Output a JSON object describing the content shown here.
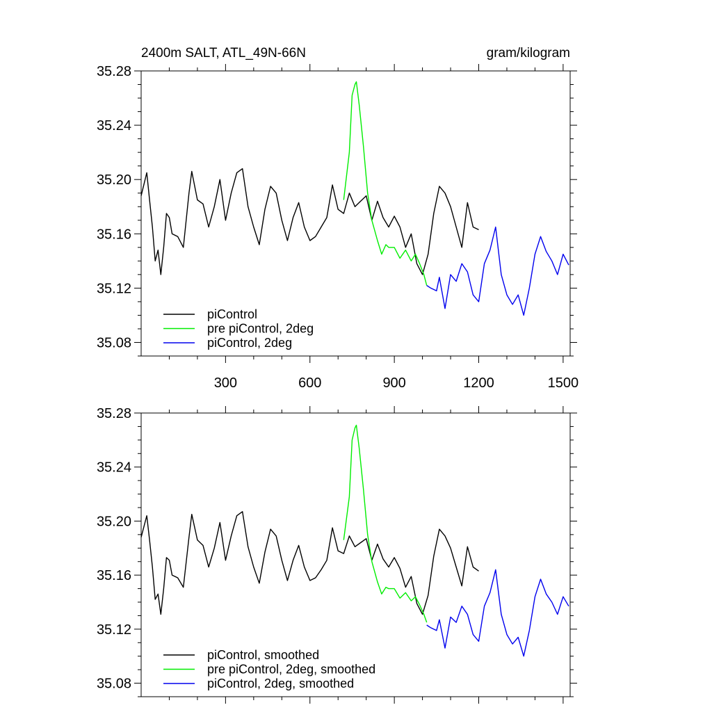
{
  "header": {
    "title_left": "2400m SALT, ATL_49N-66N",
    "title_right": "gram/kilogram"
  },
  "colors": {
    "black": "#000000",
    "green": "#00ee00",
    "blue": "#0000ee"
  },
  "chart_data": [
    {
      "type": "line",
      "title": "2400m SALT, ATL_49N-66N",
      "units": "gram/kilogram",
      "xlim": [
        0,
        1525
      ],
      "ylim": [
        35.07,
        35.28
      ],
      "x_ticks": [
        300,
        600,
        900,
        1200,
        1500
      ],
      "x_tick_labels": [
        "300",
        "600",
        "900",
        "1200",
        "1500"
      ],
      "y_ticks": [
        35.08,
        35.12,
        35.16,
        35.2,
        35.24,
        35.28
      ],
      "y_tick_labels": [
        "35.08",
        "35.12",
        "35.16",
        "35.20",
        "35.24",
        "35.28"
      ],
      "legend_position": "bottom-left",
      "series": [
        {
          "name": "piControl",
          "color": "#000000",
          "x": [
            0,
            20,
            30,
            40,
            50,
            60,
            70,
            80,
            90,
            100,
            110,
            130,
            150,
            170,
            180,
            200,
            220,
            240,
            260,
            280,
            300,
            320,
            340,
            360,
            380,
            400,
            420,
            440,
            460,
            480,
            500,
            520,
            540,
            560,
            580,
            600,
            620,
            640,
            660,
            680,
            700,
            720,
            740,
            760,
            780,
            800,
            820,
            840,
            860,
            880,
            900,
            920,
            940,
            960,
            980,
            1000,
            1020,
            1040,
            1060,
            1080,
            1100,
            1120,
            1140,
            1160,
            1180,
            1200
          ],
          "values": [
            35.188,
            35.205,
            35.185,
            35.165,
            35.14,
            35.148,
            35.13,
            35.15,
            35.175,
            35.172,
            35.16,
            35.158,
            35.15,
            35.19,
            35.206,
            35.185,
            35.182,
            35.165,
            35.18,
            35.2,
            35.17,
            35.19,
            35.205,
            35.208,
            35.18,
            35.165,
            35.152,
            35.178,
            35.195,
            35.19,
            35.17,
            35.155,
            35.172,
            35.183,
            35.165,
            35.155,
            35.158,
            35.165,
            35.172,
            35.196,
            35.178,
            35.175,
            35.19,
            35.18,
            35.184,
            35.188,
            35.17,
            35.184,
            35.172,
            35.165,
            35.173,
            35.165,
            35.15,
            35.16,
            35.138,
            35.13,
            35.145,
            35.175,
            35.195,
            35.19,
            35.18,
            35.165,
            35.15,
            35.183,
            35.165,
            35.163
          ]
        },
        {
          "name": "pre piControl, 2deg",
          "color": "#00ee00",
          "x": [
            720,
            740,
            750,
            760,
            765,
            775,
            790,
            805,
            820,
            840,
            855,
            870,
            880,
            900,
            920,
            940,
            960,
            975,
            990,
            1005,
            1015
          ],
          "values": [
            35.185,
            35.22,
            35.262,
            35.27,
            35.272,
            35.255,
            35.225,
            35.19,
            35.17,
            35.155,
            35.145,
            35.152,
            35.15,
            35.15,
            35.142,
            35.148,
            35.14,
            35.145,
            35.138,
            35.13,
            35.122
          ]
        },
        {
          "name": "piControl, 2deg",
          "color": "#0000ee",
          "x": [
            1015,
            1030,
            1050,
            1060,
            1080,
            1100,
            1120,
            1140,
            1160,
            1180,
            1200,
            1220,
            1240,
            1260,
            1280,
            1300,
            1320,
            1340,
            1360,
            1380,
            1400,
            1420,
            1440,
            1460,
            1480,
            1500,
            1520
          ],
          "values": [
            35.122,
            35.12,
            35.118,
            35.128,
            35.105,
            35.13,
            35.125,
            35.138,
            35.132,
            35.115,
            35.11,
            35.138,
            35.148,
            35.165,
            35.13,
            35.115,
            35.108,
            35.115,
            35.1,
            35.12,
            35.145,
            35.158,
            35.147,
            35.14,
            35.13,
            35.145,
            35.137
          ]
        }
      ]
    },
    {
      "type": "line",
      "title": "",
      "units": "",
      "xlim": [
        0,
        1525
      ],
      "ylim": [
        35.07,
        35.28
      ],
      "x_ticks": [
        300,
        600,
        900,
        1200,
        1500
      ],
      "x_tick_labels": [
        "",
        "",
        "",
        "",
        ""
      ],
      "y_ticks": [
        35.08,
        35.12,
        35.16,
        35.2,
        35.24,
        35.28
      ],
      "y_tick_labels": [
        "35.08",
        "35.12",
        "35.16",
        "35.20",
        "35.24",
        "35.28"
      ],
      "legend_position": "bottom-left",
      "series": [
        {
          "name": "piControl, smoothed",
          "color": "#000000",
          "x": [
            0,
            20,
            30,
            40,
            50,
            60,
            70,
            80,
            90,
            100,
            110,
            130,
            150,
            170,
            180,
            200,
            220,
            240,
            260,
            280,
            300,
            320,
            340,
            360,
            380,
            400,
            420,
            440,
            460,
            480,
            500,
            520,
            540,
            560,
            580,
            600,
            620,
            640,
            660,
            680,
            700,
            720,
            740,
            760,
            780,
            800,
            820,
            840,
            860,
            880,
            900,
            920,
            940,
            960,
            980,
            1000,
            1020,
            1040,
            1060,
            1080,
            1100,
            1120,
            1140,
            1160,
            1180,
            1200
          ],
          "values": [
            35.188,
            35.204,
            35.186,
            35.166,
            35.142,
            35.146,
            35.131,
            35.15,
            35.173,
            35.171,
            35.16,
            35.158,
            35.151,
            35.188,
            35.205,
            35.186,
            35.182,
            35.166,
            35.18,
            35.199,
            35.171,
            35.189,
            35.204,
            35.207,
            35.181,
            35.166,
            35.154,
            35.177,
            35.194,
            35.189,
            35.171,
            35.156,
            35.171,
            35.182,
            35.166,
            35.156,
            35.158,
            35.164,
            35.171,
            35.195,
            35.178,
            35.176,
            35.189,
            35.181,
            35.184,
            35.187,
            35.171,
            35.183,
            35.172,
            35.166,
            35.173,
            35.165,
            35.151,
            35.159,
            35.139,
            35.131,
            35.145,
            35.174,
            35.194,
            35.189,
            35.18,
            35.166,
            35.152,
            35.181,
            35.166,
            35.163
          ]
        },
        {
          "name": "pre piControl, 2deg, smoothed",
          "color": "#00ee00",
          "x": [
            720,
            740,
            750,
            760,
            765,
            775,
            790,
            805,
            820,
            840,
            855,
            870,
            880,
            900,
            920,
            940,
            960,
            975,
            990,
            1005,
            1015
          ],
          "values": [
            35.186,
            35.218,
            35.26,
            35.269,
            35.271,
            35.254,
            35.224,
            35.19,
            35.17,
            35.155,
            35.146,
            35.151,
            35.15,
            35.15,
            35.143,
            35.147,
            35.141,
            35.144,
            35.138,
            35.131,
            35.125
          ]
        },
        {
          "name": "piControl, 2deg, smoothed",
          "color": "#0000ee",
          "x": [
            1015,
            1030,
            1050,
            1060,
            1080,
            1100,
            1120,
            1140,
            1160,
            1180,
            1200,
            1220,
            1240,
            1260,
            1280,
            1300,
            1320,
            1340,
            1360,
            1380,
            1400,
            1420,
            1440,
            1460,
            1480,
            1500,
            1520
          ],
          "values": [
            35.123,
            35.121,
            35.119,
            35.127,
            35.106,
            35.129,
            35.125,
            35.137,
            35.131,
            35.116,
            35.111,
            35.137,
            35.147,
            35.164,
            35.131,
            35.116,
            35.109,
            35.114,
            35.1,
            35.119,
            35.144,
            35.157,
            35.146,
            35.14,
            35.131,
            35.144,
            35.137
          ]
        }
      ]
    }
  ]
}
